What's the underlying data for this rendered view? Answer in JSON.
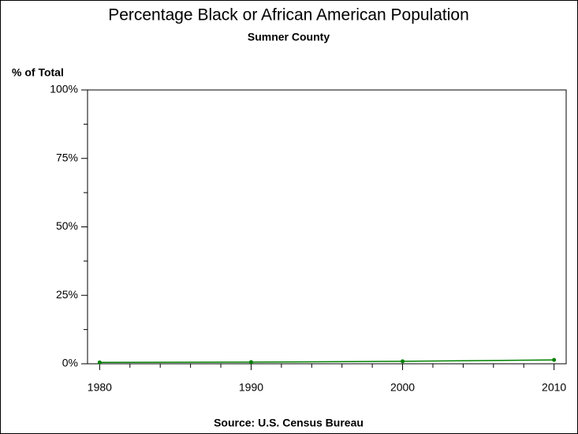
{
  "chart_data": {
    "type": "line",
    "title": "Percentage Black or African American Population",
    "subtitle": "Sumner County",
    "y_label": "% of Total",
    "source": "Source: U.S. Census Bureau",
    "x": [
      1980,
      1990,
      2000,
      2010
    ],
    "series": [
      {
        "name": "Black or African American",
        "color": "#008000",
        "values": [
          0.5,
          0.6,
          0.9,
          1.4
        ]
      }
    ],
    "xlim": [
      1979.2,
      2010.8
    ],
    "xticks": [
      1980,
      1990,
      2000,
      2010
    ],
    "xminorticks": [
      1982,
      1984,
      1986,
      1988,
      1992,
      1994,
      1996,
      1998,
      2002,
      2004,
      2006,
      2008
    ],
    "ylim": [
      0,
      100
    ],
    "yticks": [
      {
        "value": 0,
        "label": "0%"
      },
      {
        "value": 25,
        "label": "25%"
      },
      {
        "value": 50,
        "label": "50%"
      },
      {
        "value": 75,
        "label": "75%"
      },
      {
        "value": 100,
        "label": "100%"
      }
    ],
    "yminorticks": [
      12.5,
      37.5,
      62.5,
      87.5
    ]
  }
}
